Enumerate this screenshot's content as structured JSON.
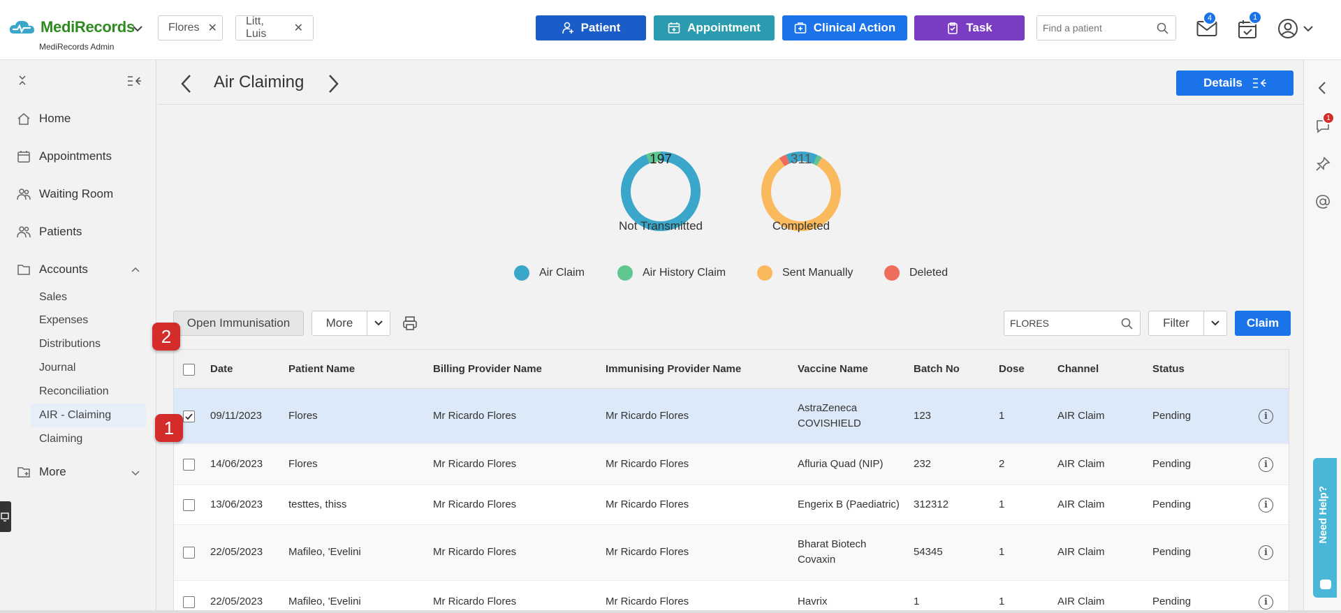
{
  "app": {
    "name": "MediRecords",
    "subtitle": "MediRecords Admin"
  },
  "patient_tabs": [
    {
      "label": "Flores"
    },
    {
      "label": "Litt, Luis"
    }
  ],
  "actions": {
    "patient": "Patient",
    "appointment": "Appointment",
    "clinical_action": "Clinical Action",
    "task": "Task"
  },
  "colors": {
    "patient": "#1a5cc8",
    "appointment": "#2b9bb0",
    "clinical_action": "#1a73e8",
    "task": "#7a3cc2"
  },
  "search": {
    "placeholder": "Find a patient"
  },
  "notifications": {
    "mail_count": "4",
    "tasks_count": "1",
    "chat_count": "1"
  },
  "sidebar": {
    "home": "Home",
    "appointments": "Appointments",
    "waiting_room": "Waiting Room",
    "patients": "Patients",
    "accounts": "Accounts",
    "accounts_items": [
      "Sales",
      "Expenses",
      "Distributions",
      "Journal",
      "Reconciliation",
      "AIR - Claiming",
      "Claiming"
    ],
    "more": "More"
  },
  "page": {
    "title": "Air Claiming",
    "details_label": "Details"
  },
  "charts": {
    "not_transmitted": {
      "value": "197",
      "label": "Not Transmitted"
    },
    "completed": {
      "value": "311",
      "label": "Completed"
    }
  },
  "chart_data": [
    {
      "type": "pie",
      "label": "Not Transmitted",
      "value": 197,
      "slices": [
        {
          "name": "Air Claim",
          "share": 0.94
        },
        {
          "name": "Air History Claim",
          "share": 0.06
        }
      ]
    },
    {
      "type": "pie",
      "label": "Completed",
      "value": 311,
      "slices": [
        {
          "name": "Sent Manually",
          "share": 0.82
        },
        {
          "name": "Deleted",
          "share": 0.03
        },
        {
          "name": "Air Claim",
          "share": 0.13
        },
        {
          "name": "Air History Claim",
          "share": 0.02
        }
      ]
    }
  ],
  "legend": [
    {
      "label": "Air Claim",
      "color": "#3aa6c9"
    },
    {
      "label": "Air History Claim",
      "color": "#5fc68f"
    },
    {
      "label": "Sent Manually",
      "color": "#f9b95c"
    },
    {
      "label": "Deleted",
      "color": "#ef6d5d"
    }
  ],
  "toolbar": {
    "open_immunisation": "Open Immunisation",
    "more": "More",
    "search_value": "FLORES",
    "filter": "Filter",
    "claim": "Claim"
  },
  "table": {
    "headers": [
      "Date",
      "Patient Name",
      "Billing Provider Name",
      "Immunising Provider Name",
      "Vaccine Name",
      "Batch No",
      "Dose",
      "Channel",
      "Status"
    ],
    "rows": [
      {
        "date": "09/11/2023",
        "patient": "Flores",
        "billing": "Mr Ricardo Flores",
        "immunising": "Mr Ricardo Flores",
        "vaccine_1": "AstraZeneca",
        "vaccine_2": "COVISHIELD",
        "batch": "123",
        "dose": "1",
        "channel": "AIR Claim",
        "status": "Pending"
      },
      {
        "date": "14/06/2023",
        "patient": "Flores",
        "billing": "Mr Ricardo Flores",
        "immunising": "Mr Ricardo Flores",
        "vaccine_1": "Afluria Quad (NIP)",
        "vaccine_2": "",
        "batch": "232",
        "dose": "2",
        "channel": "AIR Claim",
        "status": "Pending"
      },
      {
        "date": "13/06/2023",
        "patient": "testtes, thiss",
        "billing": "Mr Ricardo Flores",
        "immunising": "Mr Ricardo Flores",
        "vaccine_1": "Engerix B (Paediatric)",
        "vaccine_2": "",
        "batch": "312312",
        "dose": "1",
        "channel": "AIR Claim",
        "status": "Pending"
      },
      {
        "date": "22/05/2023",
        "patient": "Mafileo, 'Evelini",
        "billing": "Mr Ricardo Flores",
        "immunising": "Mr Ricardo Flores",
        "vaccine_1": "Bharat Biotech",
        "vaccine_2": "Covaxin",
        "batch": "54345",
        "dose": "1",
        "channel": "AIR Claim",
        "status": "Pending"
      },
      {
        "date": "22/05/2023",
        "patient": "Mafileo, 'Evelini",
        "billing": "Mr Ricardo Flores",
        "immunising": "Mr Ricardo Flores",
        "vaccine_1": "Havrix",
        "vaccine_2": "",
        "batch": "1",
        "dose": "1",
        "channel": "AIR Claim",
        "status": "Pending"
      }
    ]
  },
  "markers": {
    "one": "1",
    "two": "2"
  },
  "help": {
    "label": "Need Help?"
  }
}
